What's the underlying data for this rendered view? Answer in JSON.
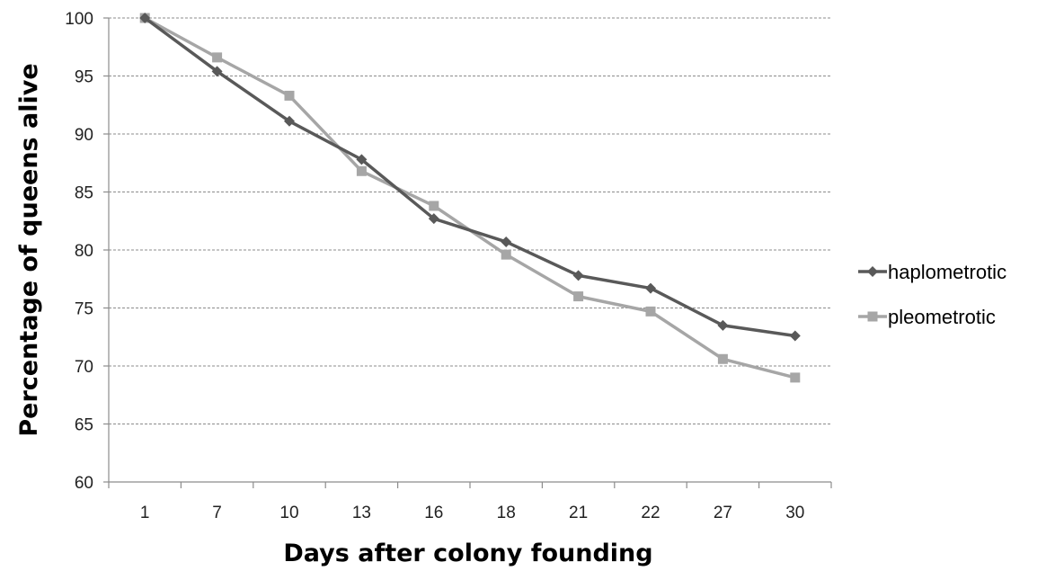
{
  "chart_data": {
    "type": "line",
    "title": "",
    "xlabel": "Days after colony founding",
    "ylabel": "Percentage of queens alive",
    "categories": [
      "1",
      "7",
      "10",
      "13",
      "16",
      "18",
      "21",
      "22",
      "27",
      "30"
    ],
    "ylim": [
      60,
      100
    ],
    "yticks": [
      60,
      65,
      70,
      75,
      80,
      85,
      90,
      95,
      100
    ],
    "grid": true,
    "legend_position": "right",
    "series": [
      {
        "name": "haplometrotic",
        "color": "#595959",
        "marker": "diamond",
        "values": [
          100,
          95.4,
          91.1,
          87.8,
          82.7,
          80.7,
          77.8,
          76.7,
          73.5,
          72.6
        ]
      },
      {
        "name": "pleometrotic",
        "color": "#a6a6a6",
        "marker": "square",
        "values": [
          100,
          96.6,
          93.3,
          86.8,
          83.8,
          79.6,
          76.0,
          74.7,
          70.6,
          69.0
        ]
      }
    ]
  }
}
